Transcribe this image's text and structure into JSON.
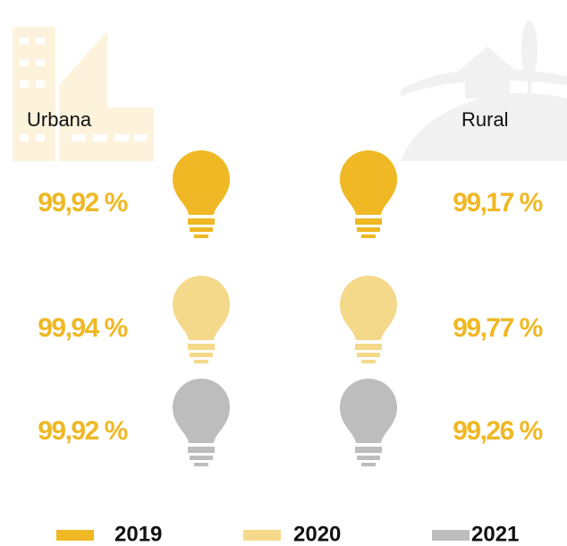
{
  "columns": [
    "Urbana",
    "Rural"
  ],
  "rows": [
    [
      "99,92 %",
      "99,17 %"
    ],
    [
      "99,94 %",
      "99,77 %"
    ],
    [
      "99,92 %",
      "99,26 %"
    ]
  ],
  "legend": [
    {
      "label": "2019",
      "color": "#efb824"
    },
    {
      "label": "2020",
      "color": "#f5d98a"
    },
    {
      "label": "2021",
      "color": "#bdbdbd"
    }
  ]
}
